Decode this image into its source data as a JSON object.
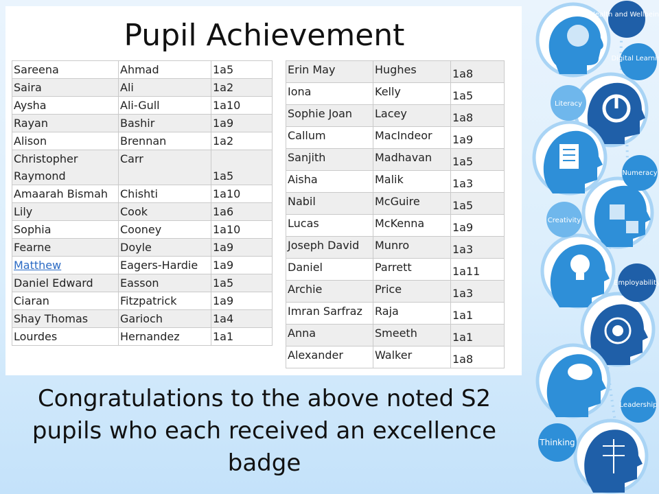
{
  "slide": {
    "title": "Pupil Achievement",
    "caption": "Congratulations to the above noted S2 pupils who each received an excellence badge"
  },
  "tables": {
    "left": [
      {
        "first": "Sareena",
        "last": "Ahmad",
        "class": "1a5"
      },
      {
        "first": "Saira",
        "last": "Ali",
        "class": "1a2"
      },
      {
        "first": "Aysha",
        "last": "Ali-Gull",
        "class": "1a10"
      },
      {
        "first": "Rayan",
        "last": "Bashir",
        "class": "1a9"
      },
      {
        "first": "Alison",
        "last": "Brennan",
        "class": "1a2"
      },
      {
        "first": "Christopher Raymond",
        "last": "Carr",
        "class": "1a5"
      },
      {
        "first": "Amaarah Bismah",
        "last": "Chishti",
        "class": "1a10"
      },
      {
        "first": "Lily",
        "last": "Cook",
        "class": "1a6"
      },
      {
        "first": "Sophia",
        "last": "Cooney",
        "class": "1a10"
      },
      {
        "first": "Fearne",
        "last": "Doyle",
        "class": "1a9"
      },
      {
        "first": "Matthew",
        "last": "Eagers-Hardie",
        "class": "1a9"
      },
      {
        "first": "Daniel Edward",
        "last": "Easson",
        "class": "1a5"
      },
      {
        "first": "Ciaran",
        "last": "Fitzpatrick",
        "class": "1a9"
      },
      {
        "first": "Shay Thomas",
        "last": "Garioch",
        "class": "1a4"
      },
      {
        "first": "Lourdes",
        "last": "Hernandez",
        "class": "1a1"
      }
    ],
    "right": [
      {
        "first": "Erin May",
        "last": "Hughes",
        "class": "1a8"
      },
      {
        "first": "Iona",
        "last": "Kelly",
        "class": "1a5"
      },
      {
        "first": "Sophie Joan",
        "last": "Lacey",
        "class": "1a8"
      },
      {
        "first": "Callum",
        "last": "MacIndeor",
        "class": "1a9"
      },
      {
        "first": "Sanjith",
        "last": "Madhavan",
        "class": "1a5"
      },
      {
        "first": "Aisha",
        "last": "Malik",
        "class": "1a3"
      },
      {
        "first": "Nabil",
        "last": "McGuire",
        "class": "1a5"
      },
      {
        "first": "Lucas",
        "last": "McKenna",
        "class": "1a9"
      },
      {
        "first": "Joseph David",
        "last": "Munro",
        "class": "1a3"
      },
      {
        "first": "Daniel",
        "last": "Parrett",
        "class": "1a11"
      },
      {
        "first": "Archie",
        "last": "Price",
        "class": "1a3"
      },
      {
        "first": "Imran Sarfraz",
        "last": "Raja",
        "class": "1a1"
      },
      {
        "first": "Anna",
        "last": "Smeeth",
        "class": "1a1"
      },
      {
        "first": "Alexander",
        "last": "Walker",
        "class": "1a8"
      }
    ]
  },
  "decoration": {
    "badges": [
      {
        "label": "Health and Wellbeing",
        "icon": "brain-icon"
      },
      {
        "label": "Digital Learning",
        "icon": "power-icon"
      },
      {
        "label": "Literacy",
        "icon": "document-pencil-icon"
      },
      {
        "label": "Numeracy",
        "icon": "puzzle-icon"
      },
      {
        "label": "Creativity",
        "icon": "lightbulb-icon"
      },
      {
        "label": "Employability",
        "icon": "target-icon"
      },
      {
        "label": "Leadership",
        "icon": "speech-bubble-icon"
      },
      {
        "label": "Thinking",
        "icon": "circuit-brain-icon"
      }
    ],
    "colors": {
      "dark_blue": "#1f5fa8",
      "mid_blue": "#2e8fd8",
      "light_blue": "#6fb7ec",
      "ring": "#a9d4f5"
    }
  }
}
